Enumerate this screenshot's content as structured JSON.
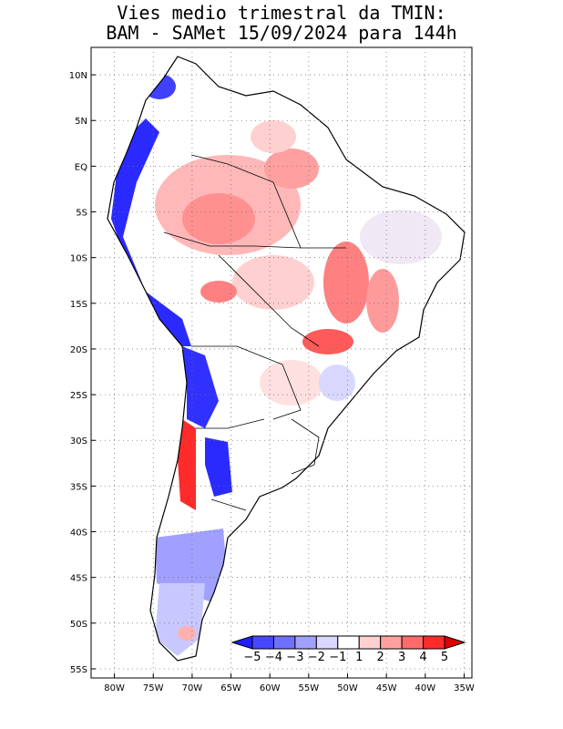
{
  "title_line1": "Vies medio trimestral da TMIN:",
  "title_line2": "BAM - SAMet 15/09/2024  para 144h",
  "map": {
    "lon_labels": [
      "80W",
      "75W",
      "70W",
      "65W",
      "60W",
      "55W",
      "50W",
      "45W",
      "40W",
      "35W"
    ],
    "lon_values": [
      -80,
      -75,
      -70,
      -65,
      -60,
      -55,
      -50,
      -45,
      -40,
      -35
    ],
    "lat_labels": [
      "10N",
      "5N",
      "EQ",
      "5S",
      "10S",
      "15S",
      "20S",
      "25S",
      "30S",
      "35S",
      "40S",
      "45S",
      "50S",
      "55S"
    ],
    "lat_values": [
      10,
      5,
      0,
      -5,
      -10,
      -15,
      -20,
      -25,
      -30,
      -35,
      -40,
      -45,
      -50,
      -55
    ],
    "lon_range": [
      -83,
      -34
    ],
    "lat_range": [
      -56,
      13
    ],
    "grid": "dotted"
  },
  "colorbar": {
    "labels": [
      "-5",
      "-4",
      "-3",
      "-2",
      "-1",
      "1",
      "2",
      "3",
      "4",
      "5"
    ],
    "colors": [
      "#1f1fff",
      "#4747ff",
      "#7070ff",
      "#a0a0ff",
      "#d8d8ff",
      "#ffffff",
      "#ffd0d0",
      "#ffa0a0",
      "#ff6b6b",
      "#ff2a2a",
      "#e00000"
    ]
  }
}
